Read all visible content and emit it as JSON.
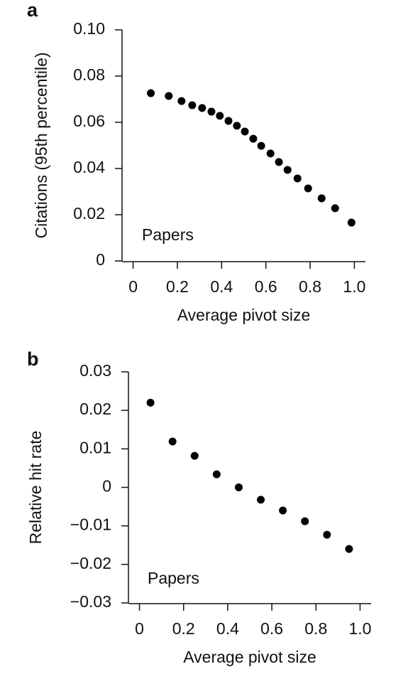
{
  "chart_data": [
    {
      "type": "scatter",
      "panel_label": "a",
      "annotation": "Papers",
      "x_label": "Average pivot size",
      "y_label": "Citations (95th percentile)",
      "color": "#000000",
      "x": [
        0.08,
        0.161,
        0.219,
        0.267,
        0.312,
        0.354,
        0.392,
        0.431,
        0.469,
        0.505,
        0.543,
        0.579,
        0.621,
        0.659,
        0.698,
        0.743,
        0.791,
        0.852,
        0.913,
        0.987
      ],
      "values": [
        0.0726,
        0.0714,
        0.0692,
        0.0674,
        0.0662,
        0.0646,
        0.0628,
        0.0606,
        0.0585,
        0.056,
        0.0529,
        0.0498,
        0.0465,
        0.0428,
        0.0394,
        0.0357,
        0.0314,
        0.0271,
        0.0228,
        0.0166
      ],
      "xlim": [
        -0.05,
        1.05
      ],
      "ylim": [
        0,
        0.1
      ],
      "xticks": [
        0,
        0.2,
        0.4,
        0.6,
        0.8,
        {
          "value": 1,
          "label": "1.0"
        }
      ],
      "yticks": [
        0,
        0.02,
        0.04,
        0.06,
        0.08,
        {
          "value": 0.1,
          "label": "0.10"
        }
      ]
    },
    {
      "type": "scatter",
      "panel_label": "b",
      "annotation": "Papers",
      "x_label": "Average pivot size",
      "y_label": "Relative hit rate",
      "color": "#000000",
      "x": [
        0.05,
        0.15,
        0.25,
        0.35,
        0.45,
        0.55,
        0.65,
        0.75,
        0.85,
        0.95
      ],
      "values": [
        0.022,
        0.0119,
        0.0082,
        0.0034,
        0,
        -0.0032,
        -0.006,
        -0.0088,
        -0.0123,
        -0.016
      ],
      "xlim": [
        -0.05,
        1.05
      ],
      "ylim": [
        -0.03,
        0.03
      ],
      "xticks": [
        0,
        0.2,
        0.4,
        0.6,
        0.8,
        {
          "value": 1,
          "label": "1.0"
        }
      ],
      "yticks": [
        {
          "value": -0.03,
          "label": "−0.03"
        },
        {
          "value": -0.02,
          "label": "−0.02"
        },
        {
          "value": -0.01,
          "label": "−0.01"
        },
        0,
        0.01,
        0.02,
        0.03
      ]
    }
  ]
}
